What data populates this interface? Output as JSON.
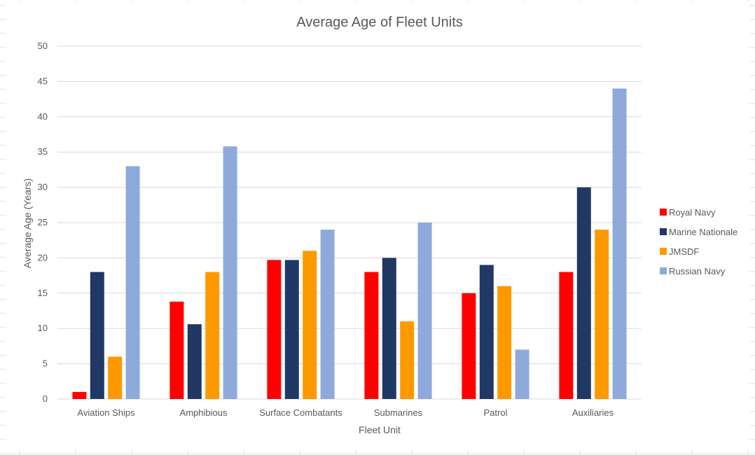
{
  "colors": {
    "gridline": "#d9d9d9",
    "sheet_grid": "#e1e1e1",
    "text": "#595959",
    "Royal Navy": "#ff0000",
    "Marine Nationale": "#1f3864",
    "JMSDF": "#ff9900",
    "Russian Navy": "#8eaadb"
  },
  "chart_data": {
    "type": "bar",
    "title": "Average Age of Fleet Units",
    "xlabel": "Fleet Unit",
    "ylabel": "Average Age (Years)",
    "ylim": [
      0,
      50
    ],
    "y_ticks": [
      "0",
      "5",
      "10",
      "15",
      "20",
      "25",
      "30",
      "35",
      "40",
      "45",
      "50"
    ],
    "grid": true,
    "legend_position": "right",
    "categories": [
      "Aviation Ships",
      "Amphibious",
      "Surface Combatants",
      "Submarines",
      "Patrol",
      "Auxiliaries"
    ],
    "series": [
      {
        "name": "Royal Navy",
        "values": [
          1,
          13.8,
          19.7,
          18,
          15,
          18
        ]
      },
      {
        "name": "Marine Nationale",
        "values": [
          18,
          10.6,
          19.7,
          20,
          19,
          30
        ]
      },
      {
        "name": "JMSDF",
        "values": [
          6,
          18,
          21,
          11,
          16,
          24
        ]
      },
      {
        "name": "Russian Navy",
        "values": [
          33,
          35.8,
          24,
          25,
          7,
          44
        ]
      }
    ]
  }
}
